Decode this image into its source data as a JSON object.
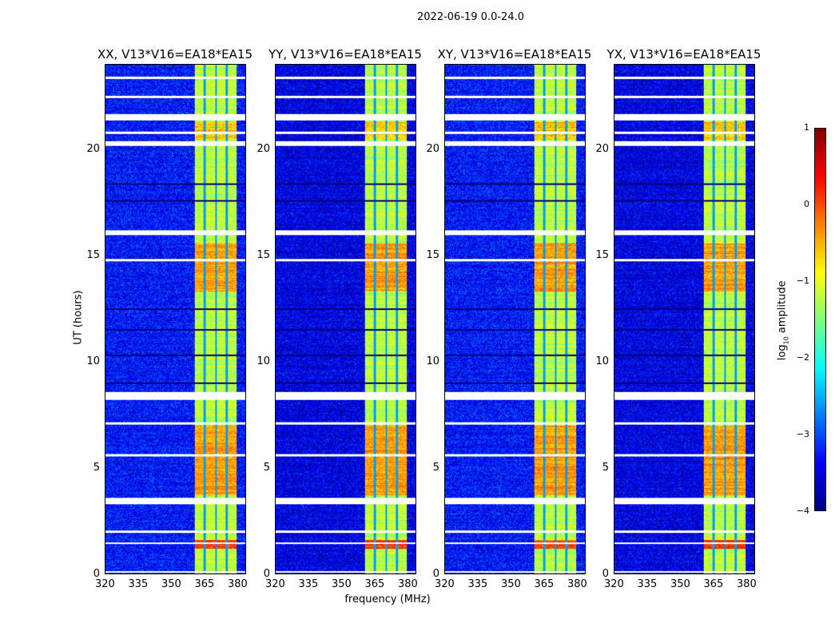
{
  "chart_data": {
    "type": "heatmap",
    "title": "2022-06-19 0.0-24.0",
    "xlabel": "frequency (MHz)",
    "ylabel": "UT (hours)",
    "xlim": [
      320,
      384
    ],
    "ylim": [
      0,
      24
    ],
    "xticks": [
      "320",
      "335",
      "350",
      "365",
      "380"
    ],
    "yticks": [
      "0",
      "5",
      "10",
      "15",
      "20"
    ],
    "panels": [
      {
        "title": "XX, V13*V16=EA18*EA15"
      },
      {
        "title": "YY, V13*V16=EA18*EA15"
      },
      {
        "title": "XY, V13*V16=EA18*EA15"
      },
      {
        "title": "YX, V13*V16=EA18*EA15"
      }
    ],
    "background_log_amp": -3.3,
    "band_mhz": [
      360.5,
      380
    ],
    "band_log_amp": -1.2,
    "channel_gaps_mhz": [
      365.2,
      370.3,
      375.3
    ],
    "bright_epochs_hours": [
      [
        13.3,
        15.6,
        -0.4
      ],
      [
        3.7,
        7.0,
        -0.4
      ],
      [
        1.2,
        1.6,
        0.1
      ],
      [
        20.5,
        21.3,
        -0.6
      ]
    ],
    "flagged_hours": [
      [
        23.35,
        23.45
      ],
      [
        22.45,
        22.55
      ],
      [
        21.4,
        21.7
      ],
      [
        20.75,
        20.85
      ],
      [
        20.2,
        20.4
      ],
      [
        16.0,
        16.2
      ],
      [
        14.75,
        14.85
      ],
      [
        8.2,
        8.6
      ],
      [
        7.05,
        7.15
      ],
      [
        5.55,
        5.65
      ],
      [
        3.3,
        3.6
      ],
      [
        1.95,
        2.05
      ],
      [
        1.4,
        1.5
      ],
      [
        0.05,
        0.15
      ]
    ],
    "dark_rows_hours": [
      12.5,
      11.5,
      10.3,
      9.0,
      18.4,
      17.6
    ],
    "colorbar": {
      "label_main": "log",
      "label_sub": "10",
      "label_tail": " amplitude",
      "range": [
        -4,
        1
      ],
      "ticks": [
        "1",
        "0",
        "−1",
        "−2",
        "−3",
        "−4"
      ]
    }
  }
}
